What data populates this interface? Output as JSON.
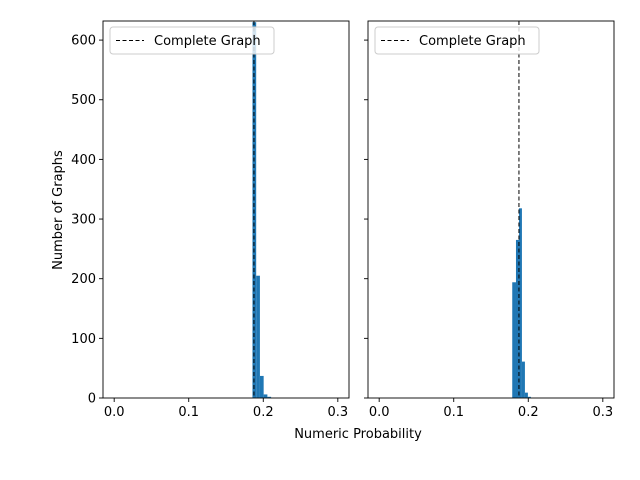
{
  "chart_data": [
    {
      "type": "bar",
      "subtype": "histogram",
      "xlim": [
        -0.015,
        0.315
      ],
      "ylim": [
        0,
        632
      ],
      "xticks": [
        0.0,
        0.1,
        0.2,
        0.3
      ],
      "xtick_labels": [
        "0.0",
        "0.1",
        "0.2",
        "0.3"
      ],
      "yticks": [
        0,
        100,
        200,
        300,
        400,
        500,
        600
      ],
      "ytick_labels": [
        "0",
        "100",
        "200",
        "300",
        "400",
        "500",
        "600"
      ],
      "bin_edges": [
        0.1855,
        0.1905,
        0.1955,
        0.2005,
        0.2055,
        0.2105
      ],
      "values": [
        630,
        205,
        37,
        6,
        2
      ],
      "bar_color": "#1f77b4",
      "reference_line": {
        "x": 0.1875,
        "label": "Complete Graph",
        "style": "dashed",
        "color": "#000000"
      },
      "legend": {
        "position": "upper-left",
        "entries": [
          "Complete Graph"
        ]
      },
      "grid": false
    },
    {
      "type": "bar",
      "subtype": "histogram",
      "xlim": [
        -0.015,
        0.315
      ],
      "ylim": [
        0,
        632
      ],
      "xticks": [
        0.0,
        0.1,
        0.2,
        0.3
      ],
      "xtick_labels": [
        "0.0",
        "0.1",
        "0.2",
        "0.3"
      ],
      "yticks": [
        0,
        100,
        200,
        300,
        400,
        500,
        600
      ],
      "ytick_labels": [],
      "bin_edges": [
        0.1785,
        0.1835,
        0.1875,
        0.1915,
        0.1955,
        0.1995,
        0.2035
      ],
      "values": [
        194,
        265,
        318,
        61,
        9,
        2
      ],
      "bar_color": "#1f77b4",
      "reference_line": {
        "x": 0.1875,
        "label": "Complete Graph",
        "style": "dashed",
        "color": "#000000"
      },
      "legend": {
        "position": "upper-left",
        "entries": [
          "Complete Graph"
        ]
      },
      "grid": false
    }
  ],
  "shared": {
    "xlabel": "Numeric Probability",
    "ylabel": "Number of Graphs",
    "sharey": true
  }
}
